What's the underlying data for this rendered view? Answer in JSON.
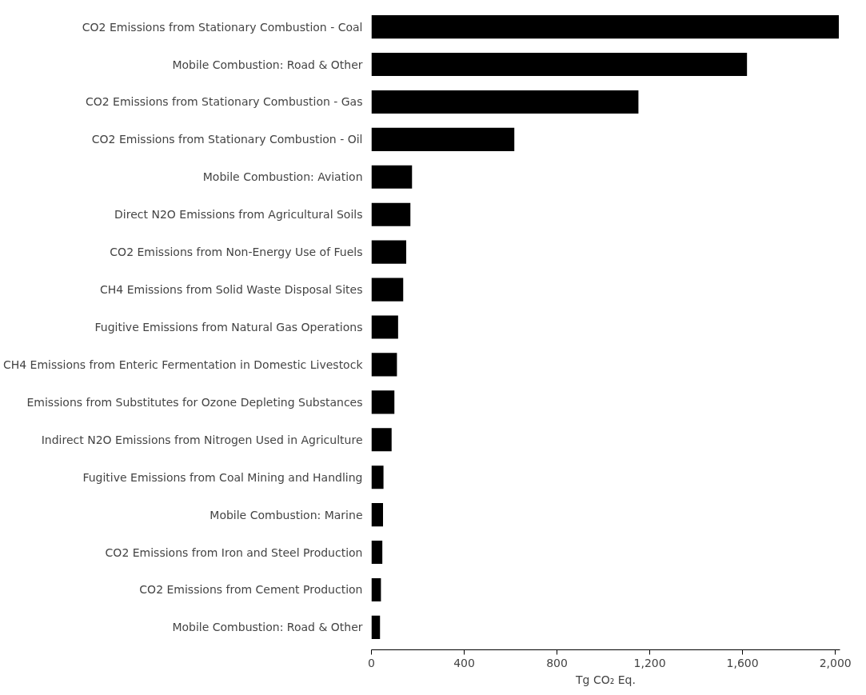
{
  "chart_data": {
    "type": "bar",
    "orientation": "horizontal",
    "xlabel": "Tg CO₂ Eq.",
    "categories": [
      "CO2 Emissions from Stationary Combustion - Coal",
      "Mobile Combustion: Road & Other",
      "CO2 Emissions from Stationary Combustion - Gas",
      "CO2 Emissions from Stationary Combustion - Oil",
      "Mobile Combustion: Aviation",
      "Direct N2O Emissions from Agricultural Soils",
      "CO2 Emissions from Non-Energy Use of Fuels",
      "CH4 Emissions from Solid Waste Disposal Sites",
      "Fugitive Emissions from Natural Gas Operations",
      "CH4 Emissions from Enteric Fermentation in Domestic Livestock",
      "Emissions from Substitutes for Ozone Depleting Substances",
      "Indirect N2O Emissions from Nitrogen Used in Agriculture",
      "Fugitive Emissions from Coal Mining and Handling",
      "Mobile Combustion: Marine",
      "CO2 Emissions from Iron and Steel Production",
      "CO2 Emissions from Cement Production",
      "Mobile Combustion: Road & Other"
    ],
    "values": [
      2015,
      1619,
      1151,
      616,
      175,
      168,
      150,
      137,
      115,
      110,
      99,
      87,
      52,
      50,
      47,
      41,
      37
    ],
    "color": "#000000",
    "xlim": [
      0,
      2020
    ],
    "xticks": [
      0,
      400,
      800,
      {
        "value": 1200,
        "label": "1,200"
      },
      {
        "value": 1600,
        "label": "1,600"
      },
      {
        "value": 2000,
        "label": "2,000"
      }
    ],
    "grid": false
  }
}
